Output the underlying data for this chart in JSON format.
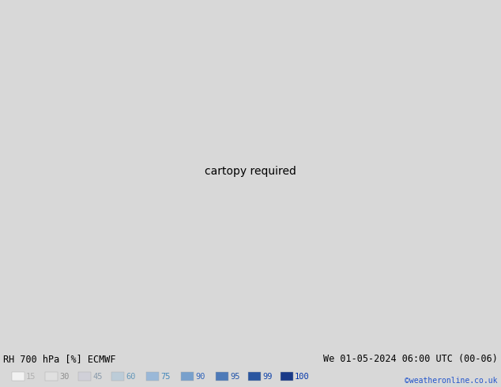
{
  "title_left": "RH 700 hPa [%] ECMWF",
  "title_right": "We 01-05-2024 06:00 UTC (00-06)",
  "credit": "©weatheronline.co.uk",
  "legend_values": [
    15,
    30,
    45,
    60,
    75,
    90,
    95,
    99,
    100
  ],
  "legend_text_colors": [
    "#b0b0b0",
    "#909090",
    "#8899aa",
    "#6699bb",
    "#4488bb",
    "#3366bb",
    "#2255aa",
    "#1144aa",
    "#0033aa"
  ],
  "fig_width": 6.34,
  "fig_height": 4.9,
  "dpi": 100,
  "map_extent": [
    -22,
    30,
    42,
    72
  ],
  "levels": [
    0,
    15,
    30,
    45,
    60,
    75,
    90,
    95,
    99,
    100
  ],
  "fill_colors": [
    "#f2f2f2",
    "#e0e0e0",
    "#d0d0d8",
    "#bcccd8",
    "#9ab8d8",
    "#78a0cc",
    "#4d7ab8",
    "#2a56a0",
    "#1a3a88"
  ],
  "contour_color": "#707070",
  "contour_levels": [
    15,
    20,
    25,
    30,
    35,
    40,
    45,
    50,
    55,
    60,
    65,
    70,
    75,
    80,
    85,
    90,
    95,
    99
  ],
  "label_levels": [
    30,
    60,
    70,
    75,
    80,
    90,
    95
  ],
  "coast_color": "#00aa00",
  "label_color": "#1a1a1a",
  "bottom_bg": "#d8d8d8",
  "bottom_text_color": "#000000",
  "credit_color": "#2255cc"
}
